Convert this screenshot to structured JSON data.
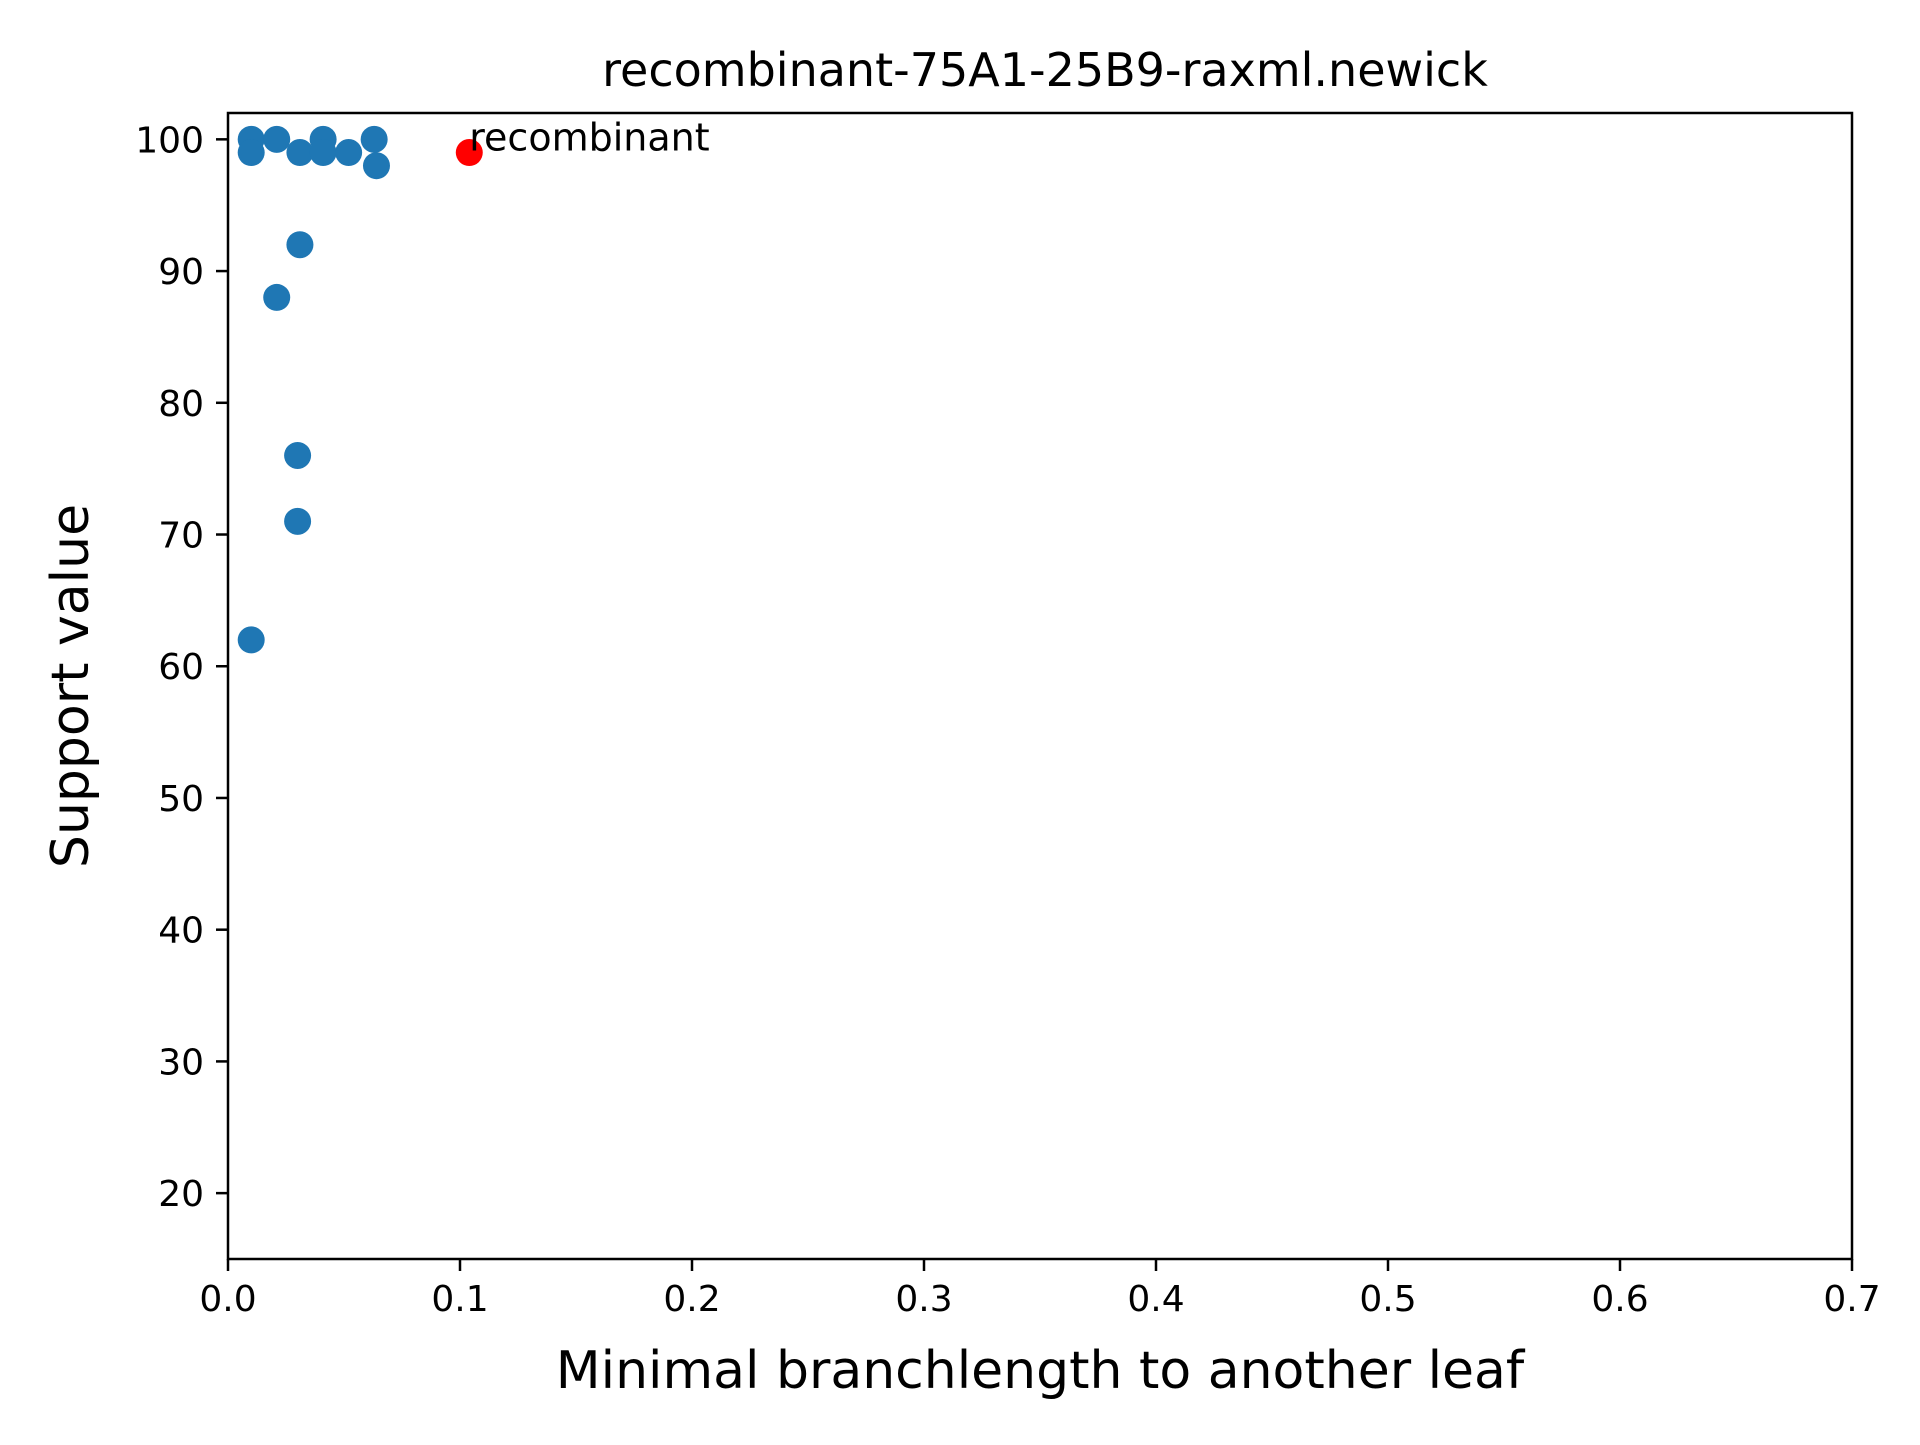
{
  "chart_data": {
    "type": "scatter",
    "title": "recombinant-75A1-25B9-raxml.newick",
    "xlabel": "Minimal branchlength to another leaf",
    "ylabel": "Support value",
    "xlim": [
      0.0,
      0.7
    ],
    "ylim": [
      15,
      102
    ],
    "xticks": [
      0.0,
      0.1,
      0.2,
      0.3,
      0.4,
      0.5,
      0.6,
      0.7
    ],
    "xtick_labels": [
      "0.0",
      "0.1",
      "0.2",
      "0.3",
      "0.4",
      "0.5",
      "0.6",
      "0.7"
    ],
    "yticks": [
      20,
      30,
      40,
      50,
      60,
      70,
      80,
      90,
      100
    ],
    "ytick_labels": [
      "20",
      "30",
      "40",
      "50",
      "60",
      "70",
      "80",
      "90",
      "100"
    ],
    "grid": false,
    "series": [
      {
        "color": "#1f77b4",
        "points": [
          {
            "x": 0.01,
            "y": 100
          },
          {
            "x": 0.01,
            "y": 99
          },
          {
            "x": 0.021,
            "y": 100
          },
          {
            "x": 0.031,
            "y": 99
          },
          {
            "x": 0.041,
            "y": 100
          },
          {
            "x": 0.041,
            "y": 99
          },
          {
            "x": 0.052,
            "y": 99
          },
          {
            "x": 0.063,
            "y": 100
          },
          {
            "x": 0.064,
            "y": 98
          },
          {
            "x": 0.031,
            "y": 92
          },
          {
            "x": 0.021,
            "y": 88
          },
          {
            "x": 0.03,
            "y": 76
          },
          {
            "x": 0.03,
            "y": 71
          },
          {
            "x": 0.01,
            "y": 62
          }
        ]
      },
      {
        "color": "#ff0000",
        "points": [
          {
            "x": 0.104,
            "y": 99
          }
        ]
      }
    ],
    "annotations": [
      {
        "text": "recombinant",
        "x": 0.104,
        "y": 99
      }
    ]
  }
}
